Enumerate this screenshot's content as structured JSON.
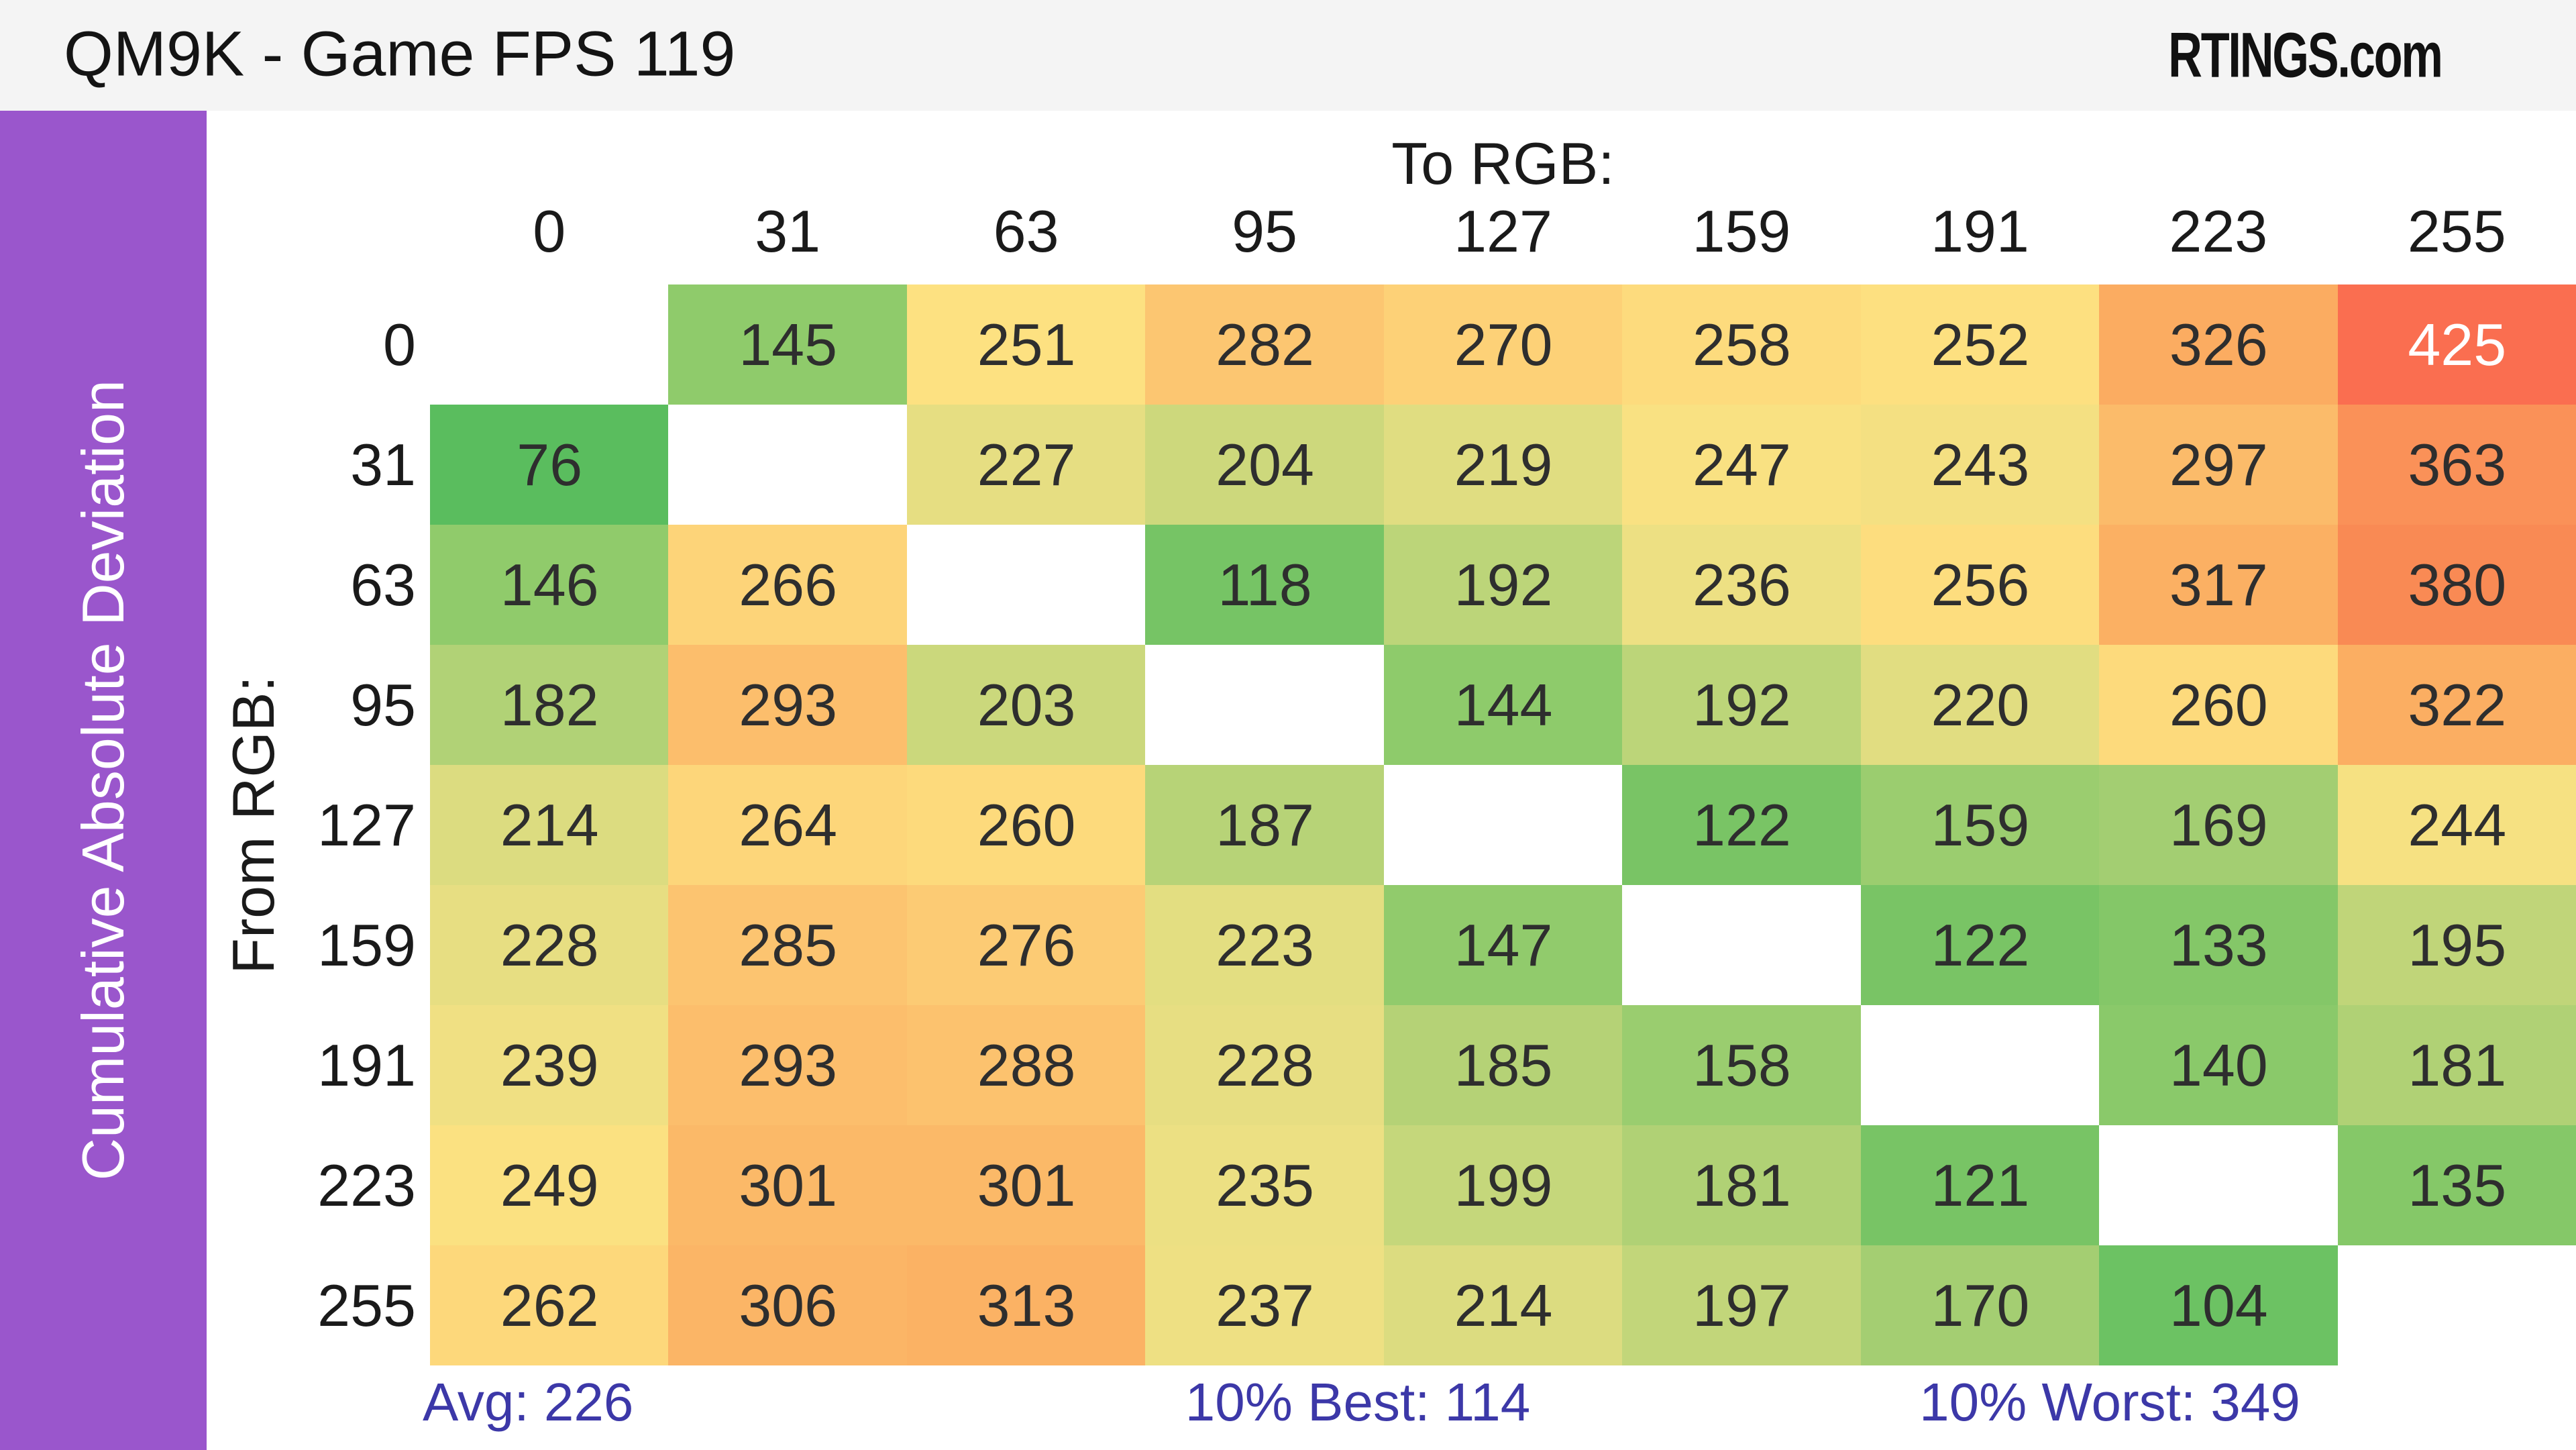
{
  "header": {
    "title": "QM9K - Game FPS 119",
    "logo": "RTINGS.com"
  },
  "sidebar": {
    "label": "Cumulative Absolute Deviation",
    "bg_color": "#9a56cc",
    "text_color": "#ffffff"
  },
  "chart_data": {
    "type": "heatmap",
    "title": "QM9K - Game FPS 119",
    "col_axis_label": "To RGB:",
    "row_axis_label": "From RGB:",
    "categories": [
      "0",
      "31",
      "63",
      "95",
      "127",
      "159",
      "191",
      "223",
      "255"
    ],
    "rows": [
      {
        "from": "0",
        "values": [
          null,
          145,
          251,
          282,
          270,
          258,
          252,
          326,
          425
        ]
      },
      {
        "from": "31",
        "values": [
          76,
          null,
          227,
          204,
          219,
          247,
          243,
          297,
          363
        ]
      },
      {
        "from": "63",
        "values": [
          146,
          266,
          null,
          118,
          192,
          236,
          256,
          317,
          380
        ]
      },
      {
        "from": "95",
        "values": [
          182,
          293,
          203,
          null,
          144,
          192,
          220,
          260,
          322
        ]
      },
      {
        "from": "127",
        "values": [
          214,
          264,
          260,
          187,
          null,
          122,
          159,
          169,
          244
        ]
      },
      {
        "from": "159",
        "values": [
          228,
          285,
          276,
          223,
          147,
          null,
          122,
          133,
          195
        ]
      },
      {
        "from": "191",
        "values": [
          239,
          293,
          288,
          228,
          185,
          158,
          null,
          140,
          181
        ]
      },
      {
        "from": "223",
        "values": [
          249,
          301,
          301,
          235,
          199,
          181,
          121,
          null,
          135
        ]
      },
      {
        "from": "255",
        "values": [
          262,
          306,
          313,
          237,
          214,
          197,
          170,
          104,
          null
        ]
      }
    ],
    "stats": {
      "avg_label": "Avg:",
      "avg_value": 226,
      "best_label": "10% Best:",
      "best_value": 114,
      "worst_label": "10% Worst:",
      "worst_value": 349
    },
    "colormap": [
      [
        76,
        "#5abd5e"
      ],
      [
        104,
        "#6cc263"
      ],
      [
        122,
        "#79c465"
      ],
      [
        145,
        "#8fcb6b"
      ],
      [
        170,
        "#a4ce72"
      ],
      [
        197,
        "#c2d67a"
      ],
      [
        214,
        "#dcdc80"
      ],
      [
        237,
        "#eee083"
      ],
      [
        251,
        "#fde181"
      ],
      [
        262,
        "#fdd87b"
      ],
      [
        282,
        "#fcc671"
      ],
      [
        306,
        "#fbb566"
      ],
      [
        326,
        "#fbac61"
      ],
      [
        363,
        "#fa9158"
      ],
      [
        380,
        "#f98a54"
      ],
      [
        425,
        "#fa6e50"
      ]
    ],
    "white_text_min": 400,
    "value_text_color": "#2e2e2e",
    "stats_color": "#3c38a8"
  }
}
